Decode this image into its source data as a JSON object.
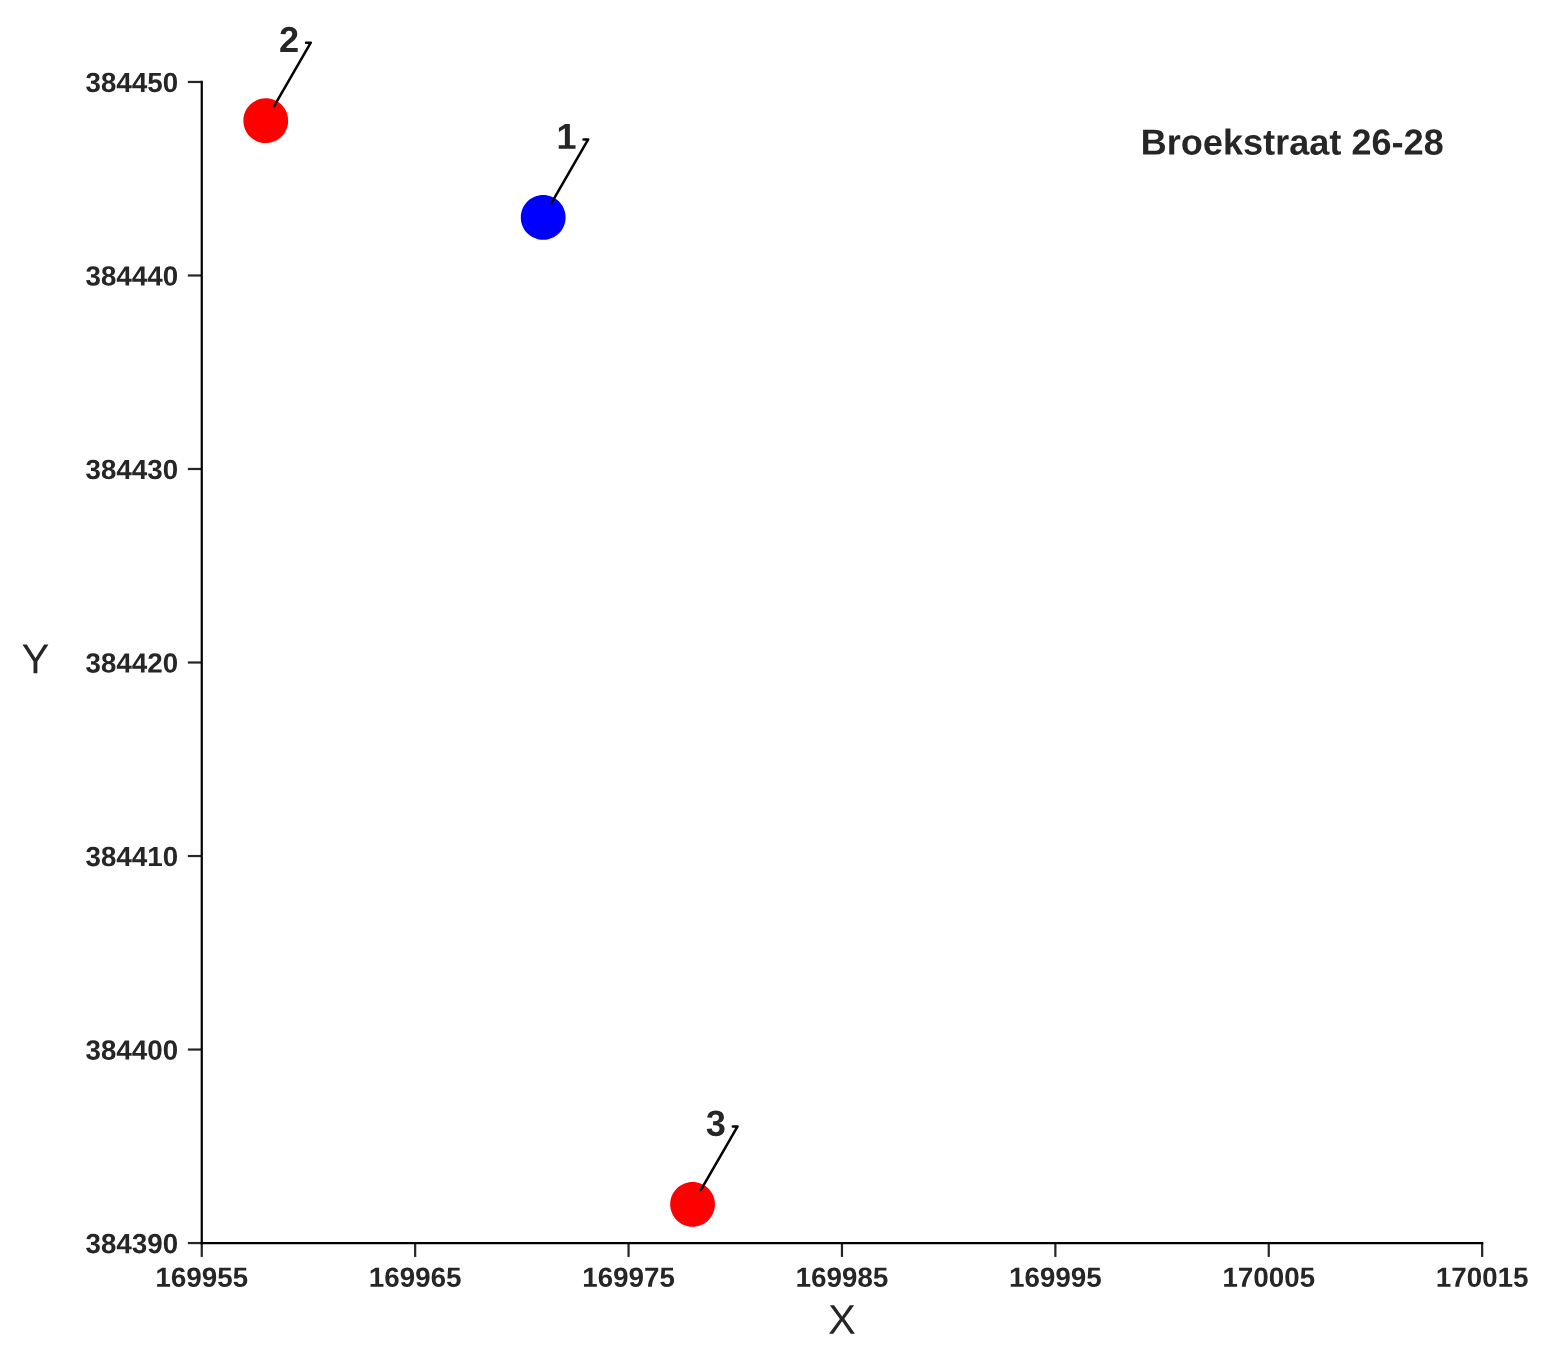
{
  "chart_data": {
    "type": "scatter",
    "title": "Broekstraat 26-28",
    "xlabel": "X",
    "ylabel": "Y",
    "x": [
      169971,
      169958,
      169978
    ],
    "series": [
      {
        "colors": [
          "#0000ff",
          "#ff0000",
          "#ff0000"
        ],
        "values": [
          384443,
          384448,
          384392
        ]
      }
    ],
    "annotations": [
      {
        "text": "1",
        "x": 169971,
        "y": 384443
      },
      {
        "text": "2",
        "x": 169958,
        "y": 384448
      },
      {
        "text": "3",
        "x": 169978,
        "y": 384392
      }
    ],
    "xlim": [
      169955,
      170015
    ],
    "xticks": [
      169955,
      169965,
      169975,
      169985,
      169995,
      170005,
      170015
    ],
    "ylim": [
      384390,
      384450
    ],
    "yticks": [
      384390,
      384400,
      384410,
      384420,
      384430,
      384440,
      384450
    ],
    "grid": false,
    "legend": false,
    "marker": "circle"
  }
}
